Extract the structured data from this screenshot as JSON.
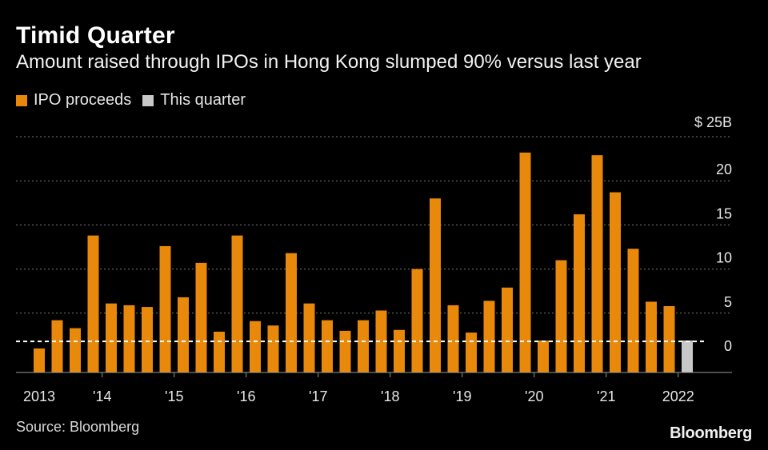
{
  "header": {
    "title": "Timid Quarter",
    "subtitle": "Amount raised through IPOs in Hong Kong slumped 90% versus last year"
  },
  "legend": {
    "items": [
      {
        "label": "IPO proceeds",
        "color": "#e8890b"
      },
      {
        "label": "This quarter",
        "color": "#c8c8c8"
      }
    ]
  },
  "footer": {
    "source": "Source: Bloomberg",
    "brand": "Bloomberg"
  },
  "chart_data": {
    "type": "bar",
    "title": "Timid Quarter",
    "ylabel": "",
    "y_unit_label": "$ 25B",
    "ylim": [
      -2,
      25
    ],
    "y_ticks": [
      0,
      5,
      10,
      15,
      20,
      25
    ],
    "y_tick_labels": [
      "0",
      "5",
      "10",
      "15",
      "20",
      "$ 25B"
    ],
    "grid": true,
    "reference_line_value": 1.8,
    "x_tick_labels": [
      {
        "label": "2013",
        "quarter_index": 0
      },
      {
        "label": "'14",
        "quarter_index": 4
      },
      {
        "label": "'15",
        "quarter_index": 8
      },
      {
        "label": "'16",
        "quarter_index": 12
      },
      {
        "label": "'17",
        "quarter_index": 16
      },
      {
        "label": "'18",
        "quarter_index": 20
      },
      {
        "label": "'19",
        "quarter_index": 24
      },
      {
        "label": "'20",
        "quarter_index": 28
      },
      {
        "label": "'21",
        "quarter_index": 32
      },
      {
        "label": "2022",
        "quarter_index": 36
      }
    ],
    "categories": [
      "2013 Q1",
      "2013 Q2",
      "2013 Q3",
      "2013 Q4",
      "2014 Q1",
      "2014 Q2",
      "2014 Q3",
      "2014 Q4",
      "2015 Q1",
      "2015 Q2",
      "2015 Q3",
      "2015 Q4",
      "2016 Q1",
      "2016 Q2",
      "2016 Q3",
      "2016 Q4",
      "2017 Q1",
      "2017 Q2",
      "2017 Q3",
      "2017 Q4",
      "2018 Q1",
      "2018 Q2",
      "2018 Q3",
      "2018 Q4",
      "2019 Q1",
      "2019 Q2",
      "2019 Q3",
      "2019 Q4",
      "2020 Q1",
      "2020 Q2",
      "2020 Q3",
      "2020 Q4",
      "2021 Q1",
      "2021 Q2",
      "2021 Q3",
      "2021 Q4",
      "2022 Q1"
    ],
    "series": [
      {
        "name": "IPO proceeds",
        "color": "#e8890b",
        "values": [
          1.0,
          4.2,
          3.3,
          13.8,
          6.1,
          5.9,
          5.7,
          12.6,
          6.8,
          10.7,
          2.9,
          13.8,
          4.1,
          3.6,
          11.8,
          6.1,
          4.2,
          3.0,
          4.2,
          5.3,
          3.1,
          10.0,
          18.0,
          5.9,
          2.8,
          6.4,
          7.9,
          23.2,
          1.9,
          11.0,
          16.2,
          22.9,
          18.7,
          12.3,
          6.3,
          5.8,
          null
        ]
      },
      {
        "name": "This quarter",
        "color": "#c8c8c8",
        "values": [
          null,
          null,
          null,
          null,
          null,
          null,
          null,
          null,
          null,
          null,
          null,
          null,
          null,
          null,
          null,
          null,
          null,
          null,
          null,
          null,
          null,
          null,
          null,
          null,
          null,
          null,
          null,
          null,
          null,
          null,
          null,
          null,
          null,
          null,
          null,
          null,
          1.9
        ]
      }
    ]
  }
}
